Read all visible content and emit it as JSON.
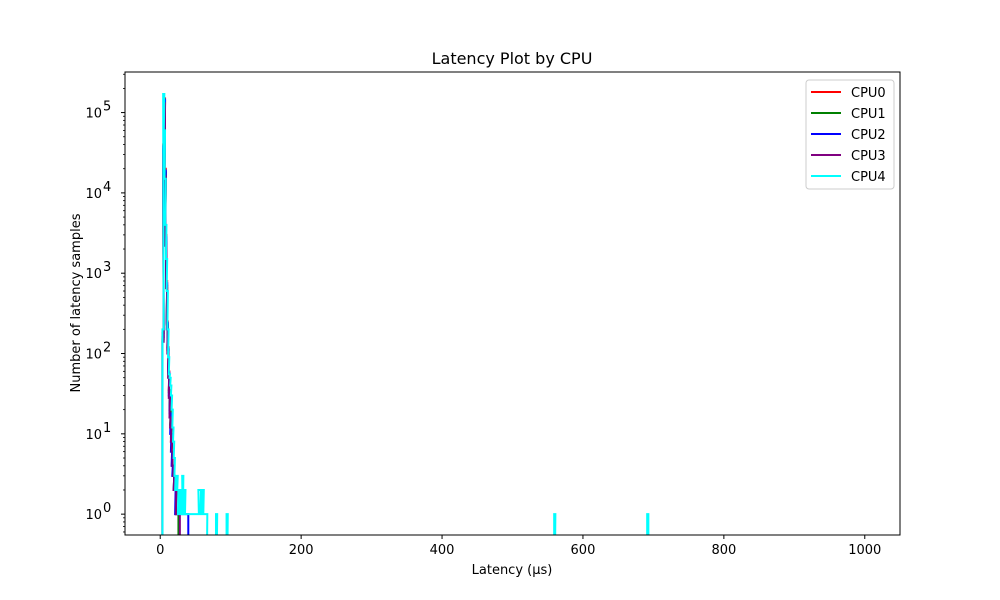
{
  "chart_data": {
    "type": "line",
    "title": "Latency Plot by CPU",
    "xlabel": "Latency (µs)",
    "ylabel": "Number of latency samples",
    "xlim": [
      -50,
      1050
    ],
    "ylim": [
      0.55,
      320000
    ],
    "yscale": "log",
    "grid": false,
    "legend_position": "top-right",
    "x_ticks": [
      0,
      200,
      400,
      600,
      800,
      1000
    ],
    "x_tick_labels": [
      "0",
      "200",
      "400",
      "600",
      "800",
      "1000"
    ],
    "y_ticks": [
      1,
      10,
      100,
      1000,
      10000,
      100000
    ],
    "y_tick_labels": [
      "10",
      "10",
      "10",
      "10",
      "10",
      "10"
    ],
    "y_tick_exponents": [
      "0",
      "1",
      "2",
      "3",
      "4",
      "5"
    ],
    "series": [
      {
        "name": "CPU0",
        "color": "#ff0000",
        "points": [
          [
            4,
            180
          ],
          [
            5,
            40000
          ],
          [
            6,
            150000
          ],
          [
            7,
            20000
          ],
          [
            8,
            3000
          ],
          [
            9,
            800
          ],
          [
            10,
            250
          ],
          [
            11,
            120
          ],
          [
            12,
            60
          ],
          [
            13,
            35
          ],
          [
            14,
            20
          ],
          [
            15,
            12
          ],
          [
            16,
            8
          ],
          [
            17,
            6
          ],
          [
            18,
            4
          ],
          [
            19,
            3
          ],
          [
            20,
            3
          ],
          [
            21,
            2
          ],
          [
            22,
            2
          ],
          [
            23,
            1
          ],
          [
            24,
            1
          ],
          [
            25,
            1
          ],
          [
            26,
            1
          ]
        ]
      },
      {
        "name": "CPU1",
        "color": "#008000",
        "points": [
          [
            4,
            150
          ],
          [
            5,
            35000
          ],
          [
            6,
            140000
          ],
          [
            7,
            18000
          ],
          [
            8,
            2500
          ],
          [
            9,
            700
          ],
          [
            10,
            230
          ],
          [
            11,
            110
          ],
          [
            12,
            55
          ],
          [
            13,
            33
          ],
          [
            14,
            20
          ],
          [
            15,
            13
          ],
          [
            16,
            9
          ],
          [
            17,
            6
          ],
          [
            18,
            4
          ],
          [
            19,
            3
          ],
          [
            20,
            2
          ],
          [
            21,
            2
          ],
          [
            22,
            2
          ],
          [
            23,
            1
          ],
          [
            24,
            1
          ],
          [
            25,
            1
          ]
        ]
      },
      {
        "name": "CPU2",
        "color": "#0000ff",
        "points": [
          [
            4,
            160
          ],
          [
            5,
            38000
          ],
          [
            6,
            145000
          ],
          [
            7,
            19000
          ],
          [
            8,
            2800
          ],
          [
            9,
            750
          ],
          [
            10,
            240
          ],
          [
            11,
            115
          ],
          [
            12,
            58
          ],
          [
            13,
            30
          ],
          [
            14,
            18
          ],
          [
            15,
            10
          ],
          [
            16,
            6
          ],
          [
            17,
            4
          ],
          [
            18,
            3
          ],
          [
            19,
            3
          ],
          [
            20,
            2
          ],
          [
            21,
            2
          ],
          [
            22,
            1
          ],
          [
            23,
            1
          ],
          [
            24,
            1
          ],
          [
            25,
            1
          ],
          [
            26,
            1
          ],
          [
            27,
            1
          ],
          [
            28,
            1
          ],
          [
            29,
            1
          ],
          [
            30,
            1
          ],
          [
            31,
            1
          ],
          [
            32,
            1
          ],
          [
            33,
            1
          ],
          [
            34,
            1
          ],
          [
            35,
            1
          ],
          [
            36,
            1
          ],
          [
            37,
            1
          ],
          [
            38,
            1
          ],
          [
            39,
            1
          ]
        ]
      },
      {
        "name": "CPU3",
        "color": "#800080",
        "points": [
          [
            4,
            140
          ],
          [
            5,
            30000
          ],
          [
            6,
            130000
          ],
          [
            7,
            16000
          ],
          [
            8,
            2200
          ],
          [
            9,
            650
          ],
          [
            10,
            200
          ],
          [
            11,
            100
          ],
          [
            12,
            50
          ],
          [
            13,
            28
          ],
          [
            14,
            16
          ],
          [
            15,
            12
          ],
          [
            16,
            8
          ],
          [
            17,
            6
          ],
          [
            18,
            4
          ],
          [
            19,
            3
          ],
          [
            20,
            2
          ],
          [
            21,
            2
          ],
          [
            22,
            2
          ],
          [
            23,
            1
          ],
          [
            24,
            1
          ],
          [
            25,
            1
          ],
          [
            26,
            1
          ],
          [
            27,
            1
          ]
        ]
      },
      {
        "name": "CPU4",
        "color": "#00ffff",
        "points": [
          [
            4,
            200
          ],
          [
            5,
            170000
          ],
          [
            6,
            60000
          ],
          [
            7,
            15000
          ],
          [
            8,
            4000
          ],
          [
            9,
            1500
          ],
          [
            10,
            600
          ],
          [
            11,
            200
          ],
          [
            12,
            90
          ],
          [
            13,
            55
          ],
          [
            14,
            50
          ],
          [
            15,
            40
          ],
          [
            16,
            30
          ],
          [
            17,
            20
          ],
          [
            18,
            12
          ],
          [
            19,
            8
          ],
          [
            20,
            5
          ],
          [
            21,
            3
          ],
          [
            22,
            2
          ],
          [
            23,
            3
          ],
          [
            24,
            3
          ],
          [
            25,
            2
          ],
          [
            26,
            1
          ],
          [
            27,
            2
          ],
          [
            28,
            1
          ],
          [
            29,
            2
          ],
          [
            30,
            2
          ],
          [
            31,
            1
          ],
          [
            32,
            3
          ],
          [
            33,
            1
          ],
          [
            34,
            1
          ],
          [
            35,
            2
          ],
          [
            36,
            1
          ],
          [
            37,
            1
          ],
          [
            38,
            1
          ],
          [
            39,
            1
          ],
          [
            40,
            1
          ],
          [
            41,
            1
          ],
          [
            42,
            1
          ],
          [
            43,
            1
          ],
          [
            44,
            1
          ],
          [
            45,
            1
          ],
          [
            46,
            1
          ],
          [
            47,
            1
          ],
          [
            48,
            1
          ],
          [
            49,
            1
          ],
          [
            50,
            1
          ],
          [
            51,
            1
          ],
          [
            52,
            1
          ],
          [
            53,
            1
          ],
          [
            54,
            1
          ],
          [
            55,
            2
          ],
          [
            56,
            2
          ],
          [
            57,
            2
          ],
          [
            58,
            1
          ],
          [
            59,
            1
          ],
          [
            60,
            2
          ],
          [
            61,
            2
          ],
          [
            62,
            1
          ],
          [
            63,
            1
          ],
          [
            64,
            1
          ],
          [
            65,
            1
          ],
          [
            66,
            1
          ],
          [
            80,
            1
          ],
          [
            95,
            1
          ],
          [
            560,
            1
          ],
          [
            692,
            1
          ]
        ]
      }
    ]
  }
}
